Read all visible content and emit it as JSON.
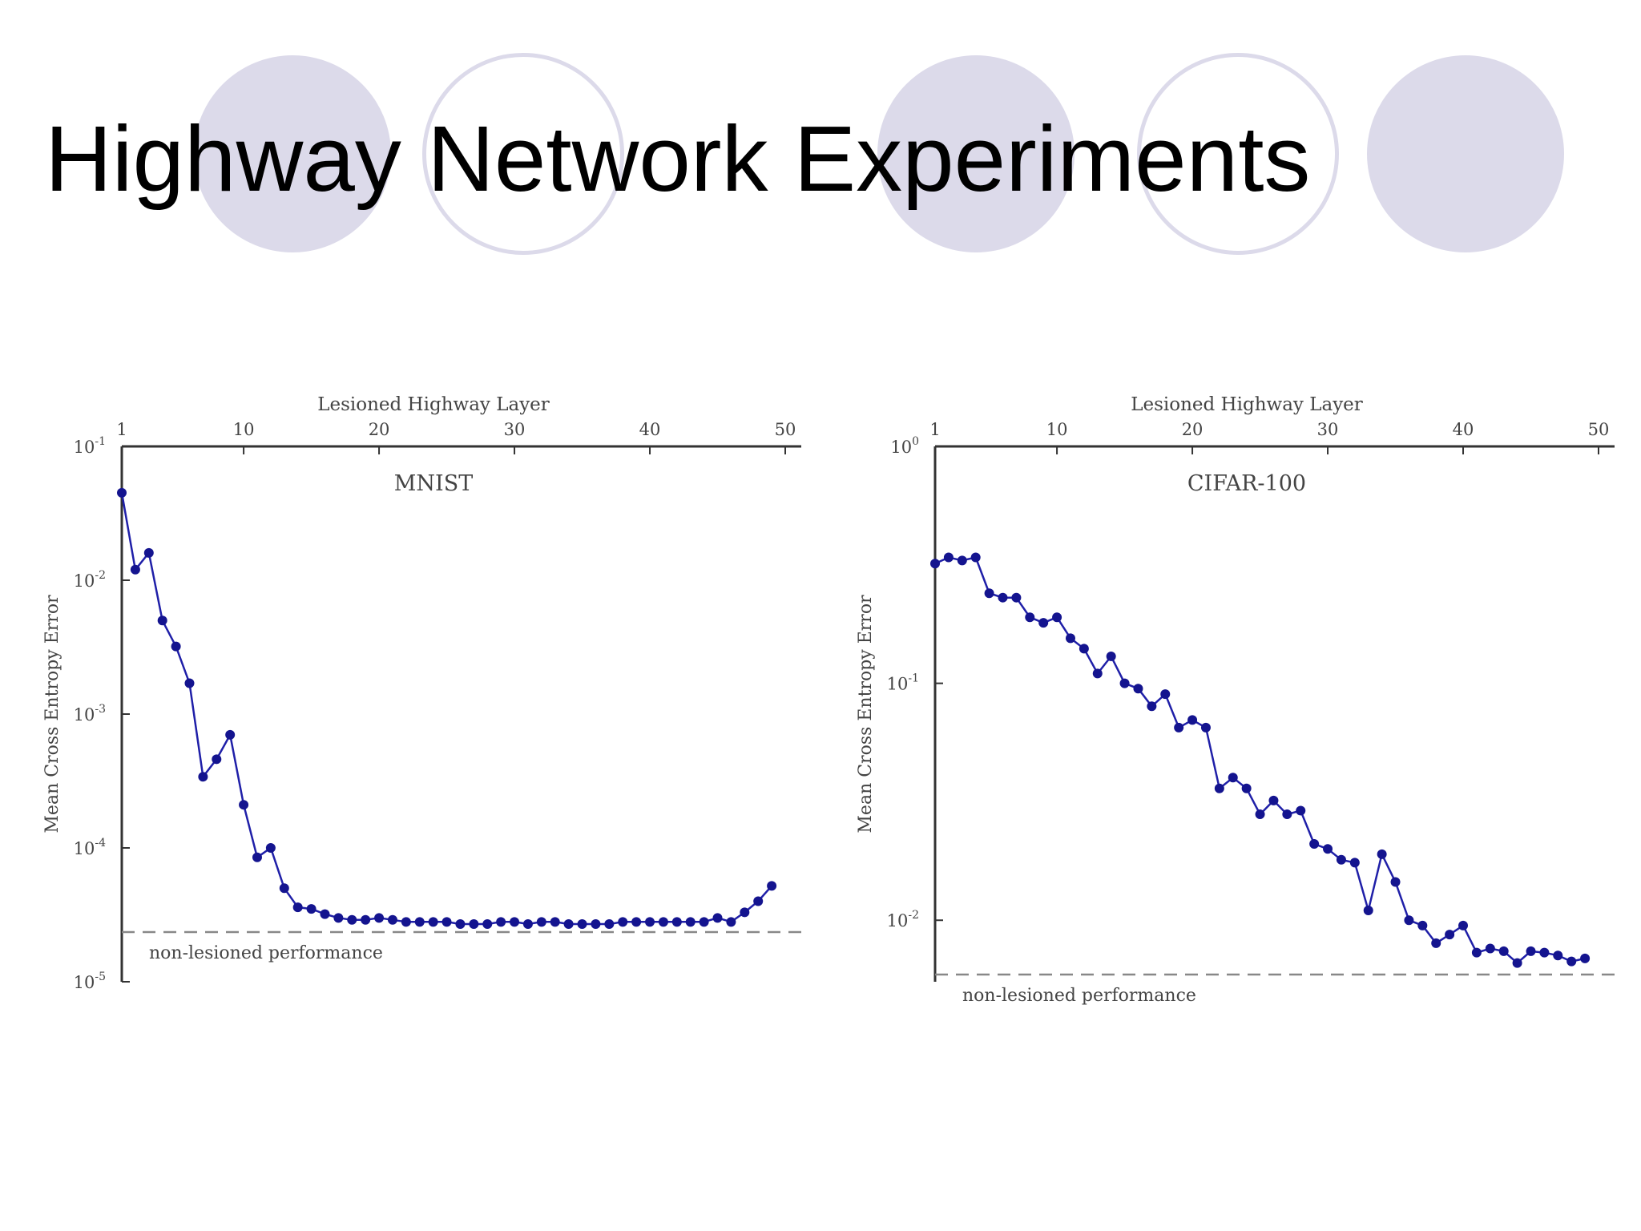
{
  "slide": {
    "title": "Highway Network Experiments",
    "accent_color": "#dcdaea"
  },
  "chart_data": [
    {
      "type": "line",
      "title": "MNIST",
      "xlabel": "Lesioned Highway Layer",
      "ylabel": "Mean Cross Entropy Error",
      "x_ticks": [
        1,
        10,
        20,
        30,
        40,
        50
      ],
      "x_tick_labels": [
        "1",
        "10",
        "20",
        "30",
        "40",
        "50"
      ],
      "xlim": [
        1,
        50
      ],
      "y_scale": "log",
      "y_tick_values": [
        0.1,
        0.01,
        0.001,
        0.0001,
        1e-05
      ],
      "y_tick_bases": [
        "10",
        "10",
        "10",
        "10",
        "10"
      ],
      "y_tick_exps": [
        "-1",
        "-2",
        "-3",
        "-4",
        "-5"
      ],
      "ylim": [
        1e-05,
        0.1
      ],
      "x_axis_position": "top",
      "grid": false,
      "line_color": "#1f1fa8",
      "series": [
        {
          "x": [
            1,
            2,
            3,
            4,
            5,
            6,
            7,
            8,
            9,
            10,
            11,
            12,
            13,
            14,
            15,
            16,
            17,
            18,
            19,
            20,
            21,
            22,
            23,
            24,
            25,
            26,
            27,
            28,
            29,
            30,
            31,
            32,
            33,
            34,
            35,
            36,
            37,
            38,
            39,
            40,
            41,
            42,
            43,
            44,
            45,
            46,
            47,
            48,
            49
          ],
          "values": [
            0.045,
            0.012,
            0.016,
            0.005,
            0.0032,
            0.0017,
            0.00034,
            0.00046,
            0.0007,
            0.00021,
            8.5e-05,
            0.0001,
            5e-05,
            3.6e-05,
            3.5e-05,
            3.2e-05,
            3e-05,
            2.9e-05,
            2.9e-05,
            3e-05,
            2.9e-05,
            2.8e-05,
            2.8e-05,
            2.8e-05,
            2.8e-05,
            2.7e-05,
            2.7e-05,
            2.7e-05,
            2.8e-05,
            2.8e-05,
            2.7e-05,
            2.8e-05,
            2.8e-05,
            2.7e-05,
            2.7e-05,
            2.7e-05,
            2.7e-05,
            2.8e-05,
            2.8e-05,
            2.8e-05,
            2.8e-05,
            2.8e-05,
            2.8e-05,
            2.8e-05,
            3e-05,
            2.8e-05,
            3.3e-05,
            4e-05,
            5.2e-05
          ]
        }
      ],
      "reference_line": {
        "value": 2.35e-05,
        "label": "non-lesioned performance"
      }
    },
    {
      "type": "line",
      "title": "CIFAR-100",
      "xlabel": "Lesioned Highway Layer",
      "ylabel": "Mean Cross Entropy Error",
      "x_ticks": [
        1,
        10,
        20,
        30,
        40,
        50
      ],
      "x_tick_labels": [
        "1",
        "10",
        "20",
        "30",
        "40",
        "50"
      ],
      "xlim": [
        1,
        50
      ],
      "y_scale": "log",
      "y_tick_values": [
        1,
        0.1,
        0.01
      ],
      "y_tick_bases": [
        "10",
        "10",
        "10"
      ],
      "y_tick_exps": [
        "0",
        "-1",
        "-2"
      ],
      "ylim": [
        0.0055,
        1
      ],
      "x_axis_position": "top",
      "grid": false,
      "line_color": "#1f1fa8",
      "series": [
        {
          "x": [
            1,
            2,
            3,
            4,
            5,
            6,
            7,
            8,
            9,
            10,
            11,
            12,
            13,
            14,
            15,
            16,
            17,
            18,
            19,
            20,
            21,
            22,
            23,
            24,
            25,
            26,
            27,
            28,
            29,
            30,
            31,
            32,
            33,
            34,
            35,
            36,
            37,
            38,
            39,
            40,
            41,
            42,
            43,
            44,
            45,
            46,
            47,
            48,
            49
          ],
          "values": [
            0.32,
            0.34,
            0.33,
            0.34,
            0.24,
            0.23,
            0.23,
            0.19,
            0.18,
            0.19,
            0.155,
            0.14,
            0.11,
            0.13,
            0.1,
            0.095,
            0.08,
            0.09,
            0.065,
            0.07,
            0.065,
            0.036,
            0.04,
            0.036,
            0.028,
            0.032,
            0.028,
            0.029,
            0.021,
            0.02,
            0.018,
            0.0175,
            0.011,
            0.019,
            0.0145,
            0.01,
            0.0095,
            0.008,
            0.0087,
            0.0095,
            0.0073,
            0.0076,
            0.0074,
            0.0066,
            0.0074,
            0.0073,
            0.0071,
            0.0067,
            0.0069
          ]
        }
      ],
      "reference_line": {
        "value": 0.0059,
        "label": "non-lesioned performance"
      }
    }
  ]
}
